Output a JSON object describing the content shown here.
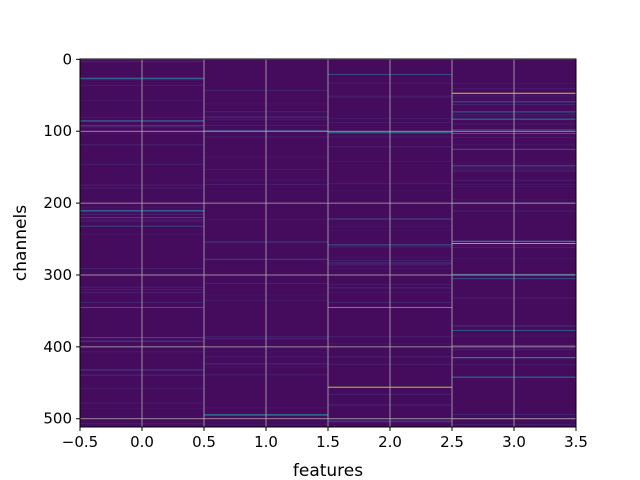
{
  "chart_data": {
    "type": "heatmap",
    "title": "",
    "xlabel": "features",
    "ylabel": "channels",
    "xlim": [
      -0.5,
      3.5
    ],
    "ylim": [
      511.5,
      -0.5
    ],
    "x_ticks": [
      -0.5,
      0.0,
      0.5,
      1.0,
      1.5,
      2.0,
      2.5,
      3.0,
      3.5
    ],
    "x_tick_labels": [
      "−0.5",
      "0.0",
      "0.5",
      "1.0",
      "1.5",
      "2.0",
      "2.5",
      "3.0",
      "3.5"
    ],
    "y_ticks": [
      0,
      100,
      200,
      300,
      400,
      500
    ],
    "y_tick_labels": [
      "0",
      "100",
      "200",
      "300",
      "400",
      "500"
    ],
    "grid": true,
    "rows": 512,
    "columns": [
      0,
      1,
      2,
      3
    ],
    "colormap": "viridis",
    "background_value": 0.03,
    "colormap_stops": [
      "#440154",
      "#482475",
      "#414487",
      "#355f8d",
      "#2a788e",
      "#21918c",
      "#22a884",
      "#44bf70",
      "#7ad151",
      "#bddf26",
      "#fde725"
    ],
    "highlights": [
      {
        "feature": 0,
        "channels": [
          26,
          27
        ],
        "value": 0.3
      },
      {
        "feature": 0,
        "channels": [
          85,
          86
        ],
        "value": 0.25
      },
      {
        "feature": 0,
        "channels": [
          92
        ],
        "value": 0.2
      },
      {
        "feature": 0,
        "channels": [
          210,
          211
        ],
        "value": 0.3
      },
      {
        "feature": 0,
        "channels": [
          220
        ],
        "value": 0.2
      },
      {
        "feature": 0,
        "channels": [
          232
        ],
        "value": 0.22
      },
      {
        "feature": 0,
        "channels": [
          345
        ],
        "value": 0.3
      },
      {
        "feature": 0,
        "channels": [
          387
        ],
        "value": 0.25
      },
      {
        "feature": 0,
        "channels": [
          392
        ],
        "value": 0.22
      },
      {
        "feature": 0,
        "channels": [
          432
        ],
        "value": 0.2
      },
      {
        "feature": 1,
        "channels": [
          99
        ],
        "value": 0.2
      },
      {
        "feature": 1,
        "channels": [
          254
        ],
        "value": 0.2
      },
      {
        "feature": 1,
        "channels": [
          278
        ],
        "value": 0.22
      },
      {
        "feature": 1,
        "channels": [
          494,
          495
        ],
        "value": 0.35
      },
      {
        "feature": 2,
        "channels": [
          21
        ],
        "value": 0.25
      },
      {
        "feature": 2,
        "channels": [
          102
        ],
        "value": 0.45
      },
      {
        "feature": 2,
        "channels": [
          222
        ],
        "value": 0.25
      },
      {
        "feature": 2,
        "channels": [
          258
        ],
        "value": 0.3
      },
      {
        "feature": 2,
        "channels": [
          345
        ],
        "value": 0.65
      },
      {
        "feature": 2,
        "channels": [
          456
        ],
        "value": 0.9
      },
      {
        "feature": 2,
        "channels": [
          504
        ],
        "value": 0.2
      },
      {
        "feature": 3,
        "channels": [
          47
        ],
        "value": 0.95
      },
      {
        "feature": 3,
        "channels": [
          59
        ],
        "value": 0.3
      },
      {
        "feature": 3,
        "channels": [
          73
        ],
        "value": 0.35
      },
      {
        "feature": 3,
        "channels": [
          83
        ],
        "value": 0.45
      },
      {
        "feature": 3,
        "channels": [
          98
        ],
        "value": 0.3
      },
      {
        "feature": 3,
        "channels": [
          103
        ],
        "value": 0.35
      },
      {
        "feature": 3,
        "channels": [
          125
        ],
        "value": 0.3
      },
      {
        "feature": 3,
        "channels": [
          148
        ],
        "value": 0.3
      },
      {
        "feature": 3,
        "channels": [
          200
        ],
        "value": 0.25
      },
      {
        "feature": 3,
        "channels": [
          253
        ],
        "value": 0.6
      },
      {
        "feature": 3,
        "channels": [
          256
        ],
        "value": 0.8
      },
      {
        "feature": 3,
        "channels": [
          299
        ],
        "value": 0.3
      },
      {
        "feature": 3,
        "channels": [
          305
        ],
        "value": 0.25
      },
      {
        "feature": 3,
        "channels": [
          377
        ],
        "value": 0.3
      },
      {
        "feature": 3,
        "channels": [
          398
        ],
        "value": 0.25
      },
      {
        "feature": 3,
        "channels": [
          415
        ],
        "value": 0.6
      },
      {
        "feature": 3,
        "channels": [
          442
        ],
        "value": 0.45
      },
      {
        "feature": 3,
        "channels": [
          500
        ],
        "value": 0.2
      }
    ]
  }
}
